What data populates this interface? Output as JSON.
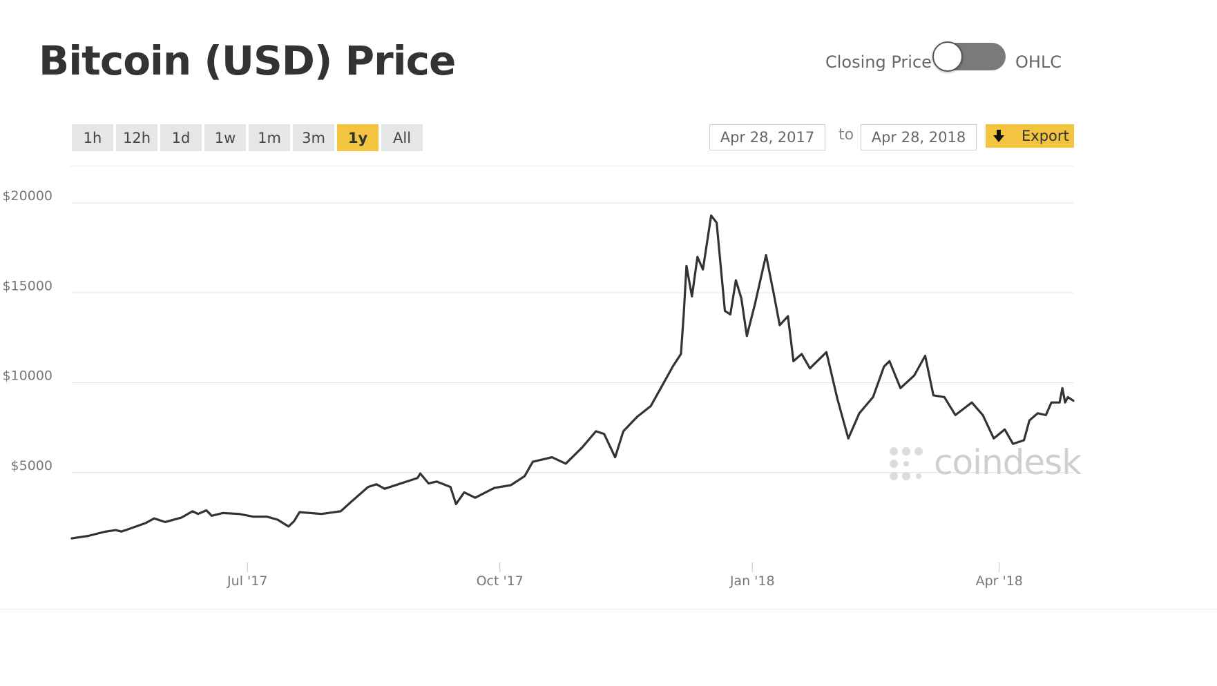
{
  "header": {
    "title": "Bitcoin (USD) Price",
    "toggle": {
      "left_label": "Closing Price",
      "right_label": "OHLC",
      "selected": "Closing Price"
    }
  },
  "range_buttons": [
    {
      "label": "1h",
      "active": false
    },
    {
      "label": "12h",
      "active": false
    },
    {
      "label": "1d",
      "active": false
    },
    {
      "label": "1w",
      "active": false
    },
    {
      "label": "1m",
      "active": false
    },
    {
      "label": "3m",
      "active": false
    },
    {
      "label": "1y",
      "active": true
    },
    {
      "label": "All",
      "active": false
    }
  ],
  "date_range": {
    "start": "Apr 28, 2017",
    "to_label": "to",
    "end": "Apr 28, 2018"
  },
  "export": {
    "label": "Export"
  },
  "watermark": {
    "text": "coindesk"
  },
  "colors": {
    "accent": "#f2c440",
    "line": "#333333",
    "grid": "#e5e5e5",
    "axis_text": "#777777"
  },
  "chart_data": {
    "type": "line",
    "xlim": [
      "2017-04-28",
      "2018-04-28"
    ],
    "ylim": [
      0,
      22000
    ],
    "yticks": [
      5000,
      10000,
      15000,
      20000
    ],
    "ytick_labels": [
      "$5000",
      "$10000",
      "$15000",
      "$20000"
    ],
    "xticks": [
      "2017-07-01",
      "2017-10-01",
      "2018-01-01",
      "2018-04-01"
    ],
    "xtick_labels": [
      "Jul '17",
      "Oct '17",
      "Jan '18",
      "Apr '18"
    ],
    "grid": "horizontal",
    "series": [
      {
        "points": [
          [
            "2017-04-28",
            1340
          ],
          [
            "2017-05-04",
            1480
          ],
          [
            "2017-05-10",
            1710
          ],
          [
            "2017-05-14",
            1800
          ],
          [
            "2017-05-16",
            1720
          ],
          [
            "2017-05-18",
            1820
          ],
          [
            "2017-05-25",
            2200
          ],
          [
            "2017-05-28",
            2450
          ],
          [
            "2017-06-01",
            2250
          ],
          [
            "2017-06-07",
            2500
          ],
          [
            "2017-06-11",
            2850
          ],
          [
            "2017-06-13",
            2700
          ],
          [
            "2017-06-16",
            2900
          ],
          [
            "2017-06-18",
            2600
          ],
          [
            "2017-06-22",
            2750
          ],
          [
            "2017-06-28",
            2700
          ],
          [
            "2017-07-03",
            2550
          ],
          [
            "2017-07-08",
            2550
          ],
          [
            "2017-07-12",
            2380
          ],
          [
            "2017-07-16",
            2000
          ],
          [
            "2017-07-18",
            2300
          ],
          [
            "2017-07-20",
            2800
          ],
          [
            "2017-07-28",
            2700
          ],
          [
            "2017-08-04",
            2850
          ],
          [
            "2017-08-08",
            3400
          ],
          [
            "2017-08-14",
            4200
          ],
          [
            "2017-08-17",
            4350
          ],
          [
            "2017-08-20",
            4100
          ],
          [
            "2017-08-25",
            4350
          ],
          [
            "2017-09-01",
            4700
          ],
          [
            "2017-09-02",
            4950
          ],
          [
            "2017-09-05",
            4400
          ],
          [
            "2017-09-08",
            4500
          ],
          [
            "2017-09-13",
            4200
          ],
          [
            "2017-09-15",
            3250
          ],
          [
            "2017-09-18",
            3900
          ],
          [
            "2017-09-22",
            3600
          ],
          [
            "2017-09-29",
            4150
          ],
          [
            "2017-10-05",
            4300
          ],
          [
            "2017-10-10",
            4800
          ],
          [
            "2017-10-13",
            5600
          ],
          [
            "2017-10-20",
            5850
          ],
          [
            "2017-10-25",
            5500
          ],
          [
            "2017-10-31",
            6400
          ],
          [
            "2017-11-05",
            7300
          ],
          [
            "2017-11-08",
            7150
          ],
          [
            "2017-11-12",
            5850
          ],
          [
            "2017-11-15",
            7300
          ],
          [
            "2017-11-20",
            8100
          ],
          [
            "2017-11-25",
            8700
          ],
          [
            "2017-11-29",
            9800
          ],
          [
            "2017-12-03",
            10900
          ],
          [
            "2017-12-06",
            11600
          ],
          [
            "2017-12-07",
            13800
          ],
          [
            "2017-12-08",
            16500
          ],
          [
            "2017-12-10",
            14800
          ],
          [
            "2017-12-12",
            17000
          ],
          [
            "2017-12-14",
            16300
          ],
          [
            "2017-12-17",
            19300
          ],
          [
            "2017-12-19",
            18900
          ],
          [
            "2017-12-22",
            14000
          ],
          [
            "2017-12-24",
            13800
          ],
          [
            "2017-12-26",
            15700
          ],
          [
            "2017-12-28",
            14700
          ],
          [
            "2017-12-30",
            12600
          ],
          [
            "2018-01-02",
            14400
          ],
          [
            "2018-01-06",
            17100
          ],
          [
            "2018-01-09",
            14800
          ],
          [
            "2018-01-11",
            13200
          ],
          [
            "2018-01-14",
            13700
          ],
          [
            "2018-01-16",
            11200
          ],
          [
            "2018-01-19",
            11600
          ],
          [
            "2018-01-22",
            10800
          ],
          [
            "2018-01-28",
            11700
          ],
          [
            "2018-02-01",
            9100
          ],
          [
            "2018-02-05",
            6900
          ],
          [
            "2018-02-09",
            8300
          ],
          [
            "2018-02-14",
            9200
          ],
          [
            "2018-02-18",
            10900
          ],
          [
            "2018-02-20",
            11200
          ],
          [
            "2018-02-24",
            9700
          ],
          [
            "2018-03-01",
            10400
          ],
          [
            "2018-03-05",
            11500
          ],
          [
            "2018-03-08",
            9300
          ],
          [
            "2018-03-12",
            9200
          ],
          [
            "2018-03-16",
            8200
          ],
          [
            "2018-03-22",
            8900
          ],
          [
            "2018-03-26",
            8200
          ],
          [
            "2018-03-30",
            6900
          ],
          [
            "2018-04-03",
            7400
          ],
          [
            "2018-04-06",
            6600
          ],
          [
            "2018-04-10",
            6800
          ],
          [
            "2018-04-12",
            7900
          ],
          [
            "2018-04-15",
            8300
          ],
          [
            "2018-04-18",
            8200
          ],
          [
            "2018-04-20",
            8900
          ],
          [
            "2018-04-23",
            8900
          ],
          [
            "2018-04-24",
            9700
          ],
          [
            "2018-04-25",
            8900
          ],
          [
            "2018-04-26",
            9200
          ],
          [
            "2018-04-28",
            9000
          ]
        ]
      }
    ]
  }
}
